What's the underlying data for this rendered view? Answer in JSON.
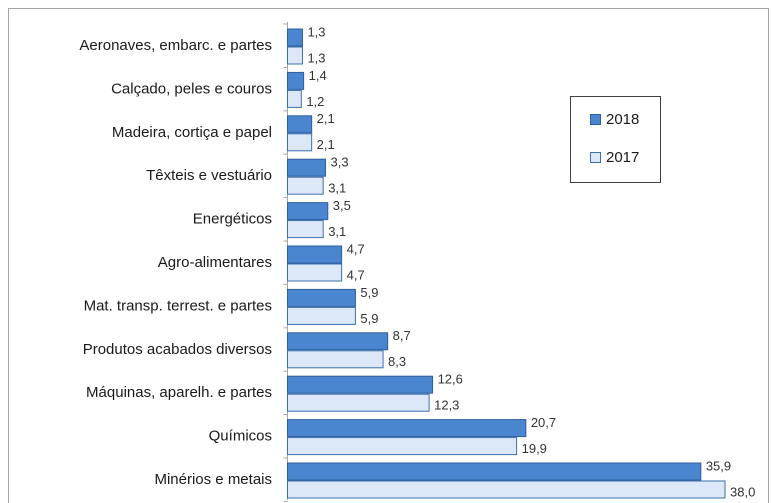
{
  "chart_data": {
    "type": "bar",
    "orientation": "horizontal",
    "categories": [
      "Aeronaves, embarc. e partes",
      "Calçado, peles e couros",
      "Madeira, cortiça e papel",
      "Têxteis e vestuário",
      "Energéticos",
      "Agro-alimentares",
      "Mat. transp. terrest. e partes",
      "Produtos acabados diversos",
      "Máquinas, aparelh. e partes",
      "Químicos",
      "Minérios e metais"
    ],
    "series": [
      {
        "name": "2018",
        "color": "#4a86cf",
        "values": [
          1.3,
          1.4,
          2.1,
          3.3,
          3.5,
          4.7,
          5.9,
          8.7,
          12.6,
          20.7,
          35.9
        ],
        "value_labels": [
          "1,3",
          "1,4",
          "2,1",
          "3,3",
          "3,5",
          "4,7",
          "5,9",
          "8,7",
          "12,6",
          "20,7",
          "35,9"
        ]
      },
      {
        "name": "2017",
        "color": "#dce8f7",
        "values": [
          1.3,
          1.2,
          2.1,
          3.1,
          3.1,
          4.7,
          5.9,
          8.3,
          12.3,
          19.9,
          38.0
        ],
        "value_labels": [
          "1,3",
          "1,2",
          "2,1",
          "3,1",
          "3,1",
          "4,7",
          "5,9",
          "8,3",
          "12,3",
          "19,9",
          "38,0"
        ]
      }
    ],
    "legend": "right"
  }
}
